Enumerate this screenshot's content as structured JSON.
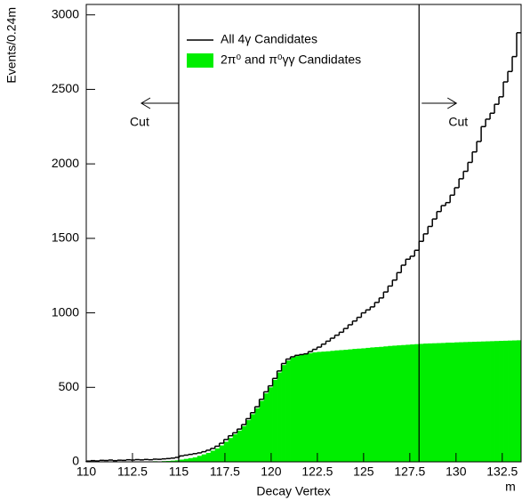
{
  "chart_data": {
    "type": "histogram",
    "y_label": "Events/0.24m",
    "x_label": "Decay Vertex",
    "x_unit": "m",
    "bins": [
      110,
      110.24,
      110.48,
      110.72,
      110.96,
      111.2,
      111.44,
      111.68,
      111.92,
      112.16,
      112.4,
      112.64,
      112.88,
      113.12,
      113.36,
      113.6,
      113.84,
      114.08,
      114.32,
      114.56,
      114.8,
      115.04,
      115.28,
      115.52,
      115.76,
      116,
      116.24,
      116.48,
      116.72,
      116.96,
      117.2,
      117.44,
      117.68,
      117.92,
      118.16,
      118.4,
      118.64,
      118.88,
      119.12,
      119.36,
      119.6,
      119.84,
      120.08,
      120.32,
      120.56,
      120.8,
      121.04,
      121.28,
      121.52,
      121.76,
      122,
      122.24,
      122.48,
      122.72,
      122.96,
      123.2,
      123.44,
      123.68,
      123.92,
      124.16,
      124.4,
      124.64,
      124.88,
      125.12,
      125.36,
      125.6,
      125.84,
      126.08,
      126.32,
      126.56,
      126.8,
      127.04,
      127.28,
      127.52,
      127.76,
      128,
      128.24,
      128.48,
      128.72,
      128.96,
      129.2,
      129.44,
      129.68,
      129.92,
      130.16,
      130.4,
      130.64,
      130.88,
      131.12,
      131.36,
      131.6,
      131.84,
      132.08,
      132.32,
      132.56,
      132.8,
      133.04,
      133.28,
      133.52
    ],
    "series": [
      {
        "name": "2π⁰ and π⁰γγ Candidates",
        "color": "#00ee00",
        "style": "fill",
        "values": [
          0,
          0,
          0,
          0,
          0,
          0,
          0,
          0,
          0,
          0,
          0,
          2,
          0,
          3,
          2,
          4,
          3,
          5,
          6,
          8,
          10,
          15,
          20,
          25,
          30,
          40,
          50,
          60,
          75,
          90,
          110,
          135,
          160,
          185,
          210,
          240,
          280,
          320,
          360,
          410,
          460,
          500,
          550,
          600,
          650,
          680,
          700,
          710,
          720,
          725,
          730,
          735,
          738,
          740,
          742,
          745,
          748,
          750,
          752,
          755,
          758,
          760,
          762,
          765,
          768,
          770,
          772,
          775,
          778,
          780,
          782,
          784,
          786,
          788,
          790,
          792,
          794,
          795,
          796,
          797,
          798,
          800,
          800,
          802,
          803,
          804,
          805,
          806,
          807,
          808,
          809,
          810,
          811,
          812,
          813,
          814,
          815,
          816
        ]
      },
      {
        "name": "All 4γ Candidates",
        "color": "#000000",
        "style": "step",
        "values": [
          5,
          8,
          6,
          10,
          9,
          12,
          8,
          11,
          10,
          14,
          12,
          15,
          13,
          16,
          14,
          18,
          17,
          20,
          22,
          25,
          30,
          40,
          45,
          50,
          55,
          60,
          68,
          78,
          90,
          105,
          125,
          150,
          175,
          195,
          220,
          250,
          290,
          330,
          370,
          420,
          470,
          510,
          560,
          610,
          660,
          690,
          705,
          715,
          720,
          725,
          740,
          755,
          770,
          790,
          810,
          830,
          850,
          870,
          895,
          920,
          945,
          970,
          1000,
          1020,
          1040,
          1070,
          1100,
          1140,
          1180,
          1220,
          1270,
          1320,
          1360,
          1380,
          1420,
          1480,
          1530,
          1580,
          1630,
          1680,
          1720,
          1740,
          1790,
          1840,
          1900,
          1950,
          2010,
          2080,
          2150,
          2250,
          2300,
          2340,
          2400,
          2450,
          2550,
          2620,
          2720,
          2880
        ]
      }
    ],
    "cut_lines": [
      {
        "value": 115,
        "label": "Cut"
      },
      {
        "value": 128,
        "label": "Cut"
      }
    ],
    "xlim": [
      110,
      133.52
    ],
    "xticks": [
      110,
      112.5,
      115,
      117.5,
      120,
      122.5,
      125,
      127.5,
      130,
      132.5
    ],
    "ylim": [
      0,
      3070
    ],
    "yticks": [
      0,
      500,
      1000,
      1500,
      2000,
      2500,
      3000
    ]
  }
}
